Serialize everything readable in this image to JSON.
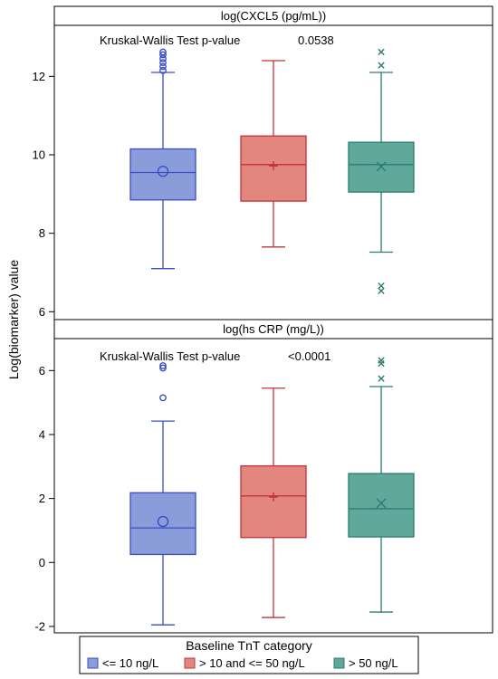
{
  "chart_data": {
    "type": "box",
    "ylabel": "Log(biomarker) value",
    "legend": {
      "title": "Baseline TnT category",
      "placement": "bottom",
      "entries": [
        {
          "label": "<= 10 ng/L",
          "color": "#5b74c9"
        },
        {
          "label": "> 10 and <= 50 ng/L",
          "color": "#d9534a"
        },
        {
          "label": "> 50 ng/L",
          "color": "#2e8b7a"
        }
      ]
    },
    "colors": {
      "fills": [
        "#8b9cdb",
        "#e3867d",
        "#5fa89b"
      ],
      "strokes": [
        "#3a4fc4",
        "#c3323c",
        "#2a7d70"
      ]
    },
    "panels": [
      {
        "title": "log(CXCL5 (pg/mL))",
        "annotation_label": "Kruskal-Wallis Test p-value",
        "annotation_value": "0.0538",
        "ylim": [
          5.8,
          13.3
        ],
        "yticks": [
          6,
          8,
          10,
          12
        ],
        "groups": [
          {
            "whisker_low": 7.1,
            "q1": 8.85,
            "median": 9.55,
            "q3": 10.15,
            "whisker_high": 12.1,
            "mean": 9.58,
            "mean_marker": "circle",
            "outliers": [
              12.15,
              12.25,
              12.35,
              12.45,
              12.55,
              12.62
            ]
          },
          {
            "whisker_low": 7.65,
            "q1": 8.82,
            "median": 9.75,
            "q3": 10.48,
            "whisker_high": 12.4,
            "mean": 9.72,
            "mean_marker": "plus",
            "outliers": []
          },
          {
            "whisker_low": 7.52,
            "q1": 9.05,
            "median": 9.75,
            "q3": 10.32,
            "whisker_high": 12.1,
            "mean": 9.7,
            "mean_marker": "x",
            "outliers": [
              12.28,
              12.62,
              6.53,
              6.66
            ]
          }
        ]
      },
      {
        "title": "log(hs CRP (mg/L))",
        "annotation_label": "Kruskal-Wallis Test p-value",
        "annotation_value": "<0.0001",
        "ylim": [
          -2.2,
          7.0
        ],
        "yticks": [
          -2,
          0,
          2,
          4,
          6
        ],
        "groups": [
          {
            "whisker_low": -1.95,
            "q1": 0.25,
            "median": 1.08,
            "q3": 2.18,
            "whisker_high": 4.42,
            "mean": 1.28,
            "mean_marker": "circle",
            "outliers": [
              5.15,
              6.08,
              6.15
            ]
          },
          {
            "whisker_low": -1.72,
            "q1": 0.78,
            "median": 2.08,
            "q3": 3.02,
            "whisker_high": 5.45,
            "mean": 2.05,
            "mean_marker": "plus",
            "outliers": []
          },
          {
            "whisker_low": -1.55,
            "q1": 0.8,
            "median": 1.68,
            "q3": 2.78,
            "whisker_high": 5.5,
            "mean": 1.85,
            "mean_marker": "x",
            "outliers": [
              5.75,
              6.22,
              6.32
            ]
          }
        ]
      }
    ]
  }
}
